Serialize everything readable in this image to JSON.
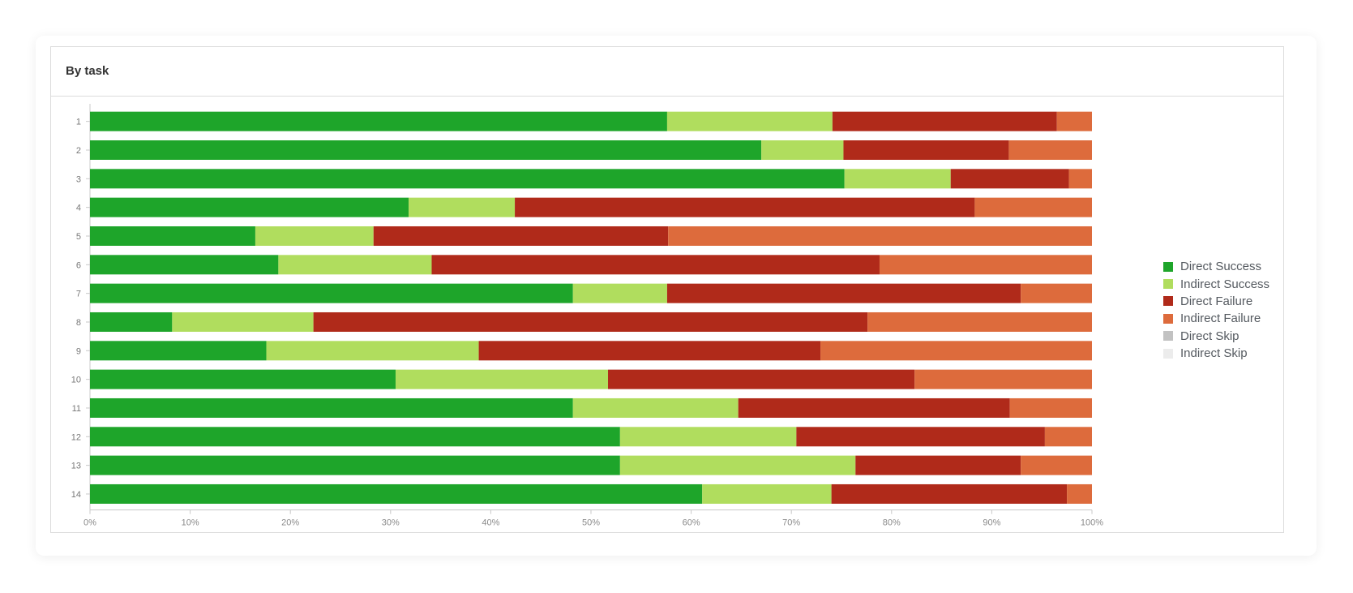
{
  "panel": {
    "title": "By task"
  },
  "chart_data": {
    "type": "bar",
    "orientation": "horizontal",
    "stacked": true,
    "categories": [
      "1",
      "2",
      "3",
      "4",
      "5",
      "6",
      "7",
      "8",
      "9",
      "10",
      "11",
      "12",
      "13",
      "14"
    ],
    "series": [
      {
        "name": "Direct Success",
        "color": "#1ea52a",
        "values": [
          57.6,
          67.0,
          75.3,
          31.8,
          16.5,
          18.8,
          48.2,
          8.2,
          17.6,
          30.5,
          48.2,
          52.9,
          52.9,
          61.1
        ]
      },
      {
        "name": "Indirect Success",
        "color": "#b0dd5e",
        "values": [
          16.5,
          8.2,
          10.6,
          10.6,
          11.8,
          15.3,
          9.4,
          14.1,
          21.2,
          21.2,
          16.5,
          17.6,
          23.5,
          12.9
        ]
      },
      {
        "name": "Direct Failure",
        "color": "#b02a1a",
        "values": [
          22.4,
          16.5,
          11.8,
          45.9,
          29.4,
          44.7,
          35.3,
          55.3,
          34.1,
          30.6,
          27.1,
          24.8,
          16.5,
          23.5
        ]
      },
      {
        "name": "Indirect Failure",
        "color": "#dd6b3c",
        "values": [
          3.5,
          8.3,
          2.3,
          11.7,
          42.3,
          21.2,
          7.1,
          22.4,
          27.1,
          17.7,
          8.2,
          4.7,
          7.1,
          2.5
        ]
      },
      {
        "name": "Direct Skip",
        "color": "#c2c2c2",
        "values": [
          0,
          0,
          0,
          0,
          0,
          0,
          0,
          0,
          0,
          0,
          0,
          0,
          0,
          0
        ]
      },
      {
        "name": "Indirect Skip",
        "color": "#ececec",
        "values": [
          0,
          0,
          0,
          0,
          0,
          0,
          0,
          0,
          0,
          0,
          0,
          0,
          0,
          0
        ]
      }
    ],
    "x_ticks": [
      "0%",
      "10%",
      "20%",
      "30%",
      "40%",
      "50%",
      "60%",
      "70%",
      "80%",
      "90%",
      "100%"
    ],
    "xlim": [
      0,
      100
    ],
    "xlabel": "",
    "ylabel": "",
    "grid": false,
    "legend_position": "right"
  }
}
